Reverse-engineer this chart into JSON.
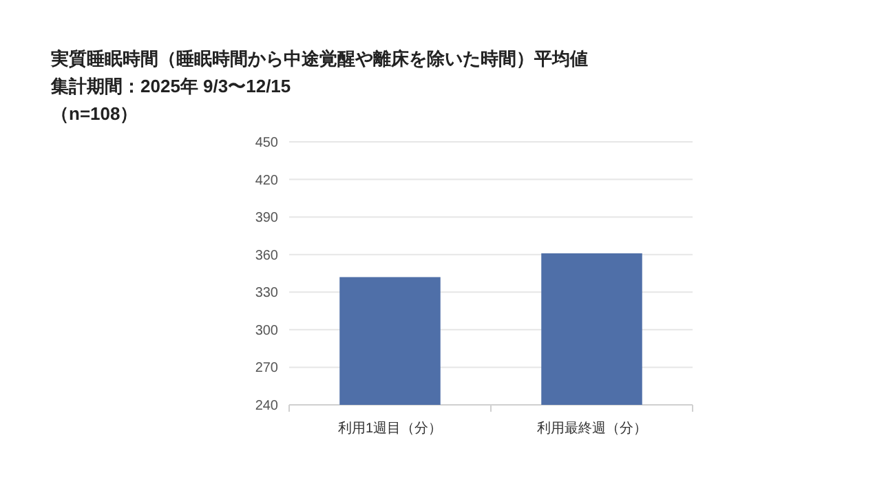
{
  "chart_data": {
    "type": "bar",
    "title": "実質睡眠時間（睡眠時間から中途覚醒や離床を除いた時間）平均値",
    "subtitle": "集計期間：2025年 9/3〜12/15",
    "annotations": [
      "（n=108）"
    ],
    "categories": [
      "利用1週目（分）",
      "利用最終週（分）"
    ],
    "values": [
      342,
      361
    ],
    "color": "#4f6fa8",
    "ylim": [
      240,
      450
    ],
    "yticks": [
      240,
      270,
      300,
      330,
      360,
      390,
      420,
      450
    ],
    "grid": "y"
  }
}
